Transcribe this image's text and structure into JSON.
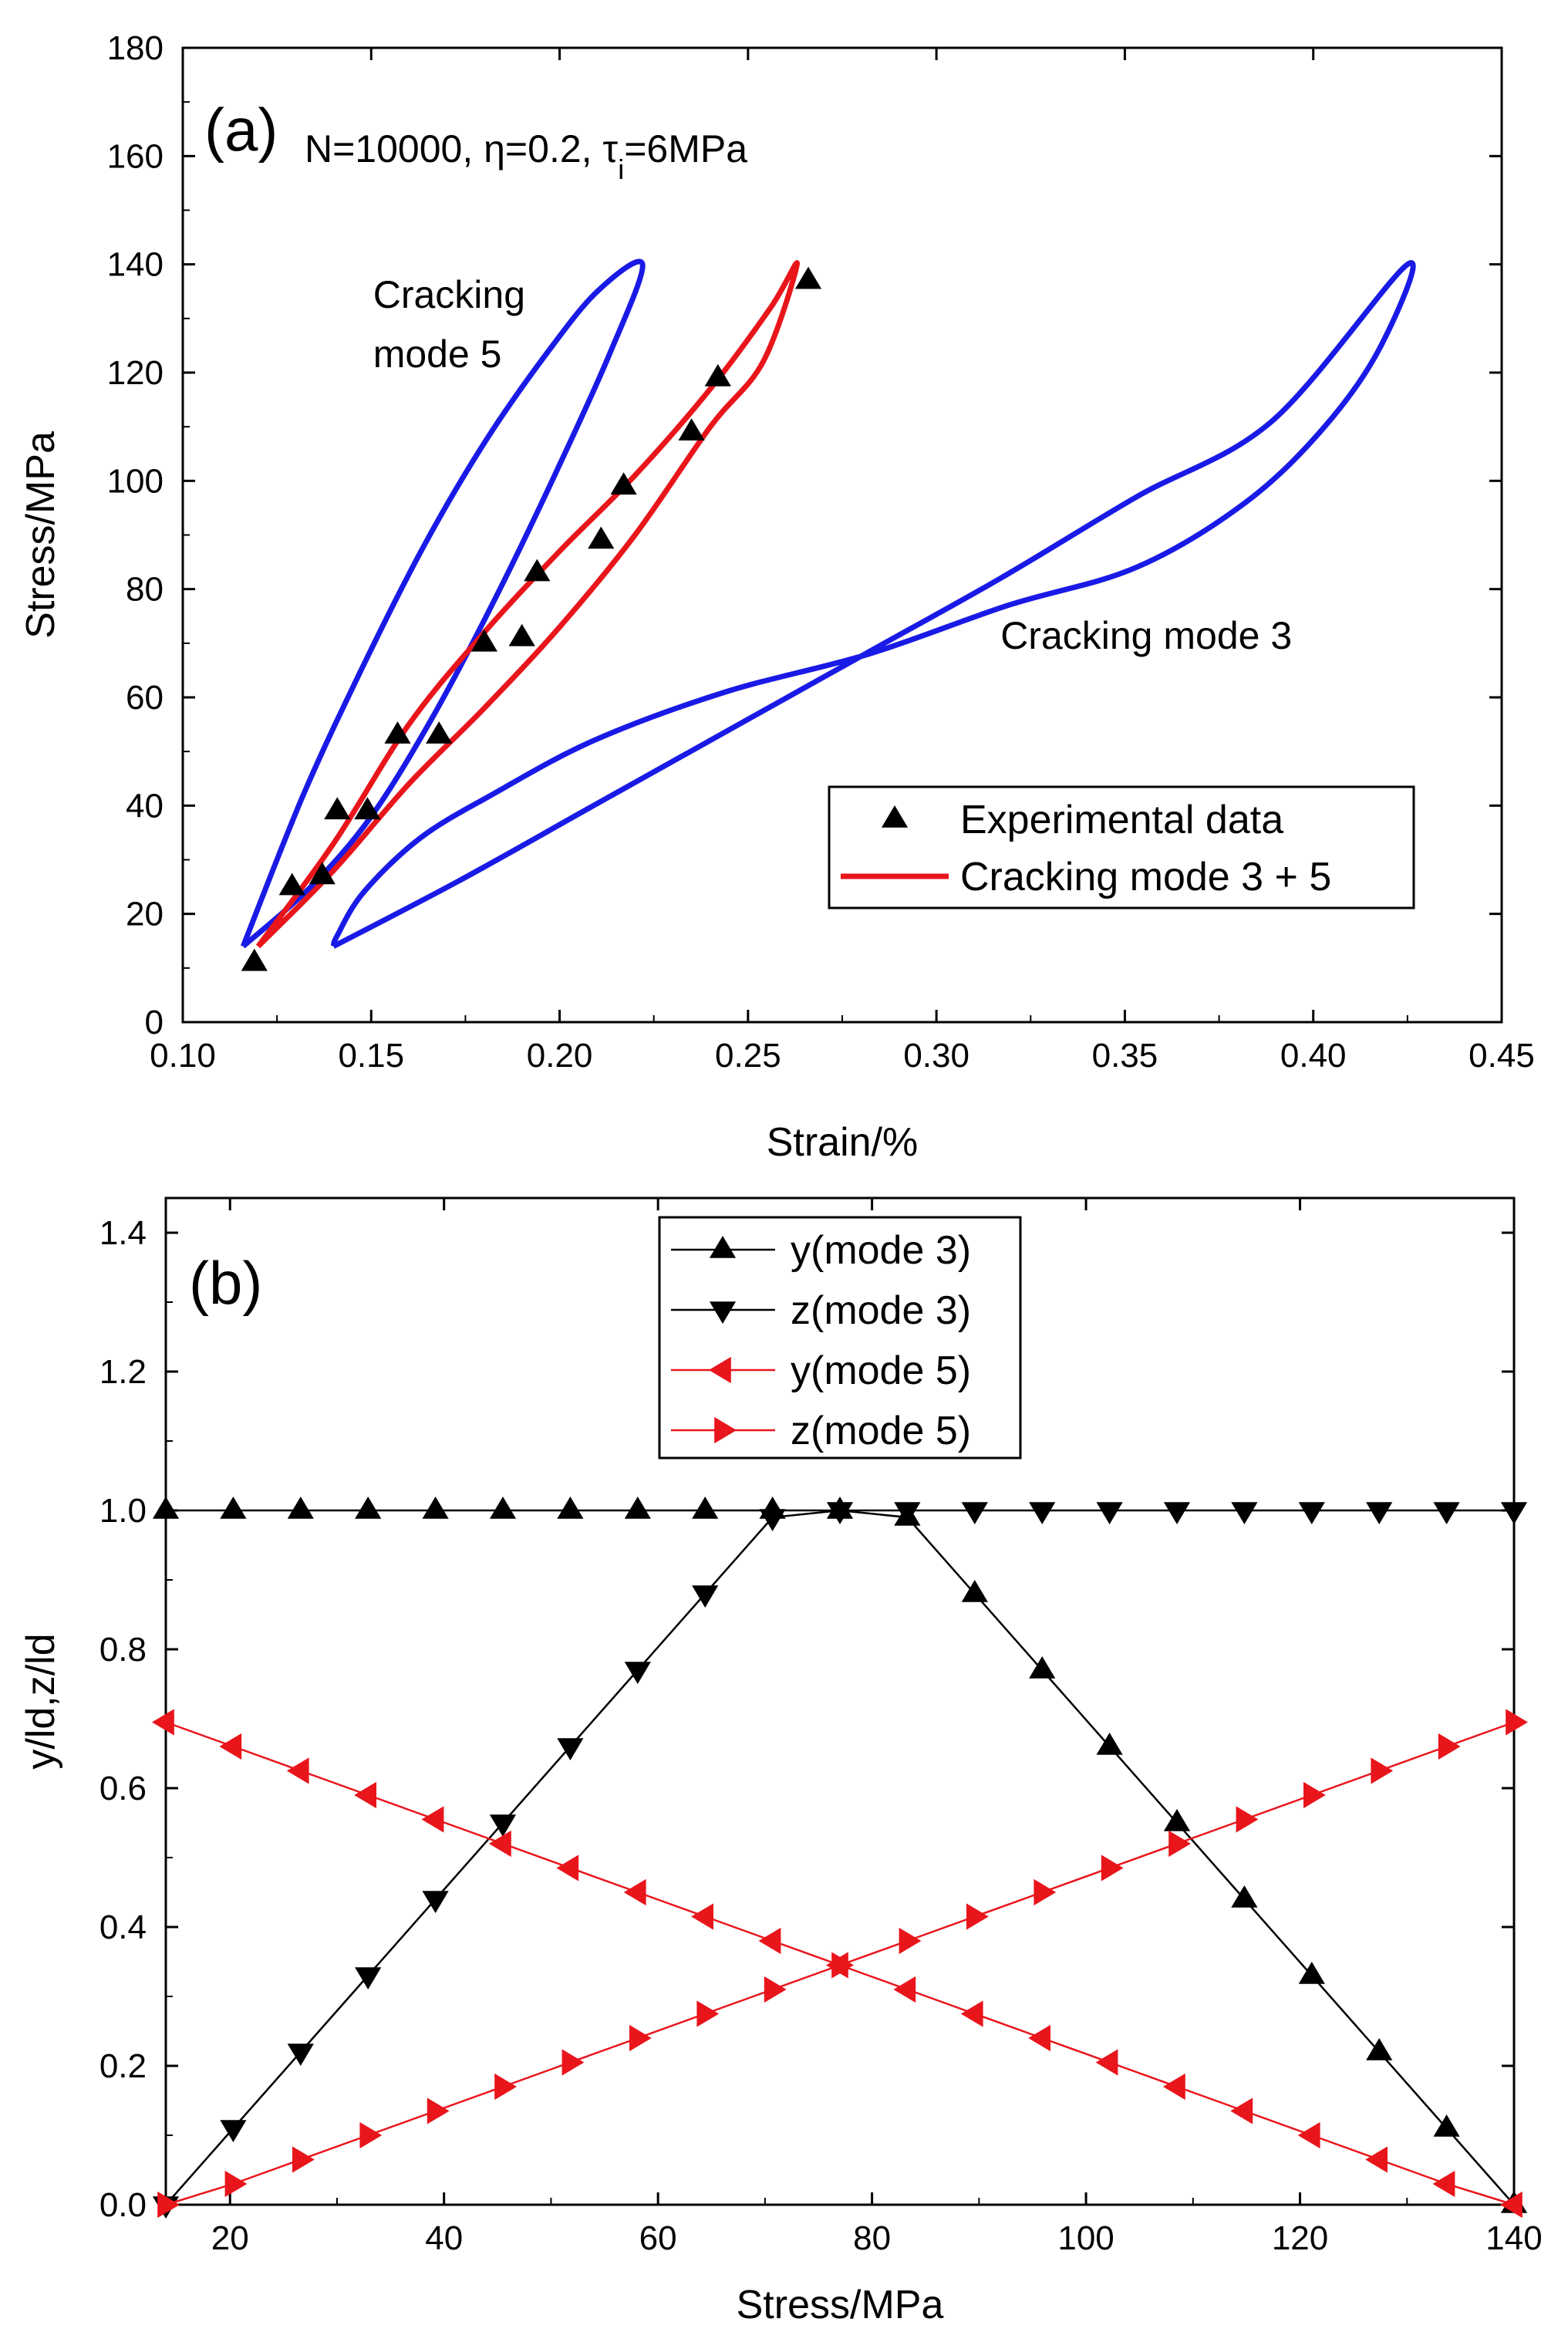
{
  "chart_data": [
    {
      "type": "line",
      "panel": "(a)",
      "xlabel": "Strain/%",
      "ylabel": "Stress/MPa",
      "xlim": [
        0.1,
        0.45
      ],
      "ylim": [
        0,
        180
      ],
      "xticks": [
        "0.10",
        "0.15",
        "0.20",
        "0.25",
        "0.30",
        "0.35",
        "0.40",
        "0.45"
      ],
      "yticks": [
        "0",
        "20",
        "40",
        "60",
        "80",
        "100",
        "120",
        "140",
        "160",
        "180"
      ],
      "params_text": {
        "main": "N=10000, η=0.2, τ",
        "subscript": "i",
        "tail": "=6MPa"
      },
      "annotations": [
        {
          "lines": [
            "Cracking",
            "mode 5"
          ],
          "at": [
            0.1505,
            132
          ]
        },
        {
          "lines": [
            "Cracking mode 3"
          ],
          "at": [
            0.317,
            69
          ]
        }
      ],
      "legend": {
        "position": "lower-right",
        "entries": [
          {
            "label": "Experimental data",
            "marker": "triangle-up",
            "color": "#000000"
          },
          {
            "label": "Cracking mode 3 + 5",
            "line": true,
            "color": "#e8151b"
          }
        ]
      },
      "colors": {
        "mode": "#1a1ae6",
        "combined": "#e8151b",
        "data": "#000000"
      },
      "series": [
        {
          "id": "mode5",
          "color": "#1a1ae6",
          "x": [
            0.116,
            0.132,
            0.148,
            0.164,
            0.18,
            0.196,
            0.21,
            0.222,
            0.213,
            0.198,
            0.182,
            0.166,
            0.15,
            0.134,
            0.116
          ],
          "y": [
            14,
            42,
            66,
            88,
            107,
            123,
            135,
            140,
            123,
            100,
            77,
            56,
            38,
            25,
            14
          ]
        },
        {
          "id": "mode3",
          "color": "#1a1ae6",
          "x": [
            0.14,
            0.173,
            0.209,
            0.245,
            0.281,
            0.317,
            0.353,
            0.389,
            0.425,
            0.418,
            0.403,
            0.382,
            0.353,
            0.319,
            0.282,
            0.244,
            0.209,
            0.182,
            0.163,
            0.148,
            0.141,
            0.14
          ],
          "y": [
            14,
            26,
            40,
            54,
            68,
            82,
            97,
            111,
            140,
            125,
            110,
            96,
            84,
            77,
            68,
            61,
            52,
            42,
            34,
            24,
            16,
            14
          ]
        },
        {
          "id": "combined",
          "color": "#e8151b",
          "x": [
            0.12,
            0.14,
            0.16,
            0.18,
            0.2,
            0.22,
            0.24,
            0.256,
            0.263,
            0.254,
            0.24,
            0.22,
            0.2,
            0.18,
            0.16,
            0.14,
            0.12
          ],
          "y": [
            14,
            33,
            55,
            72,
            87,
            101,
            117,
            132,
            140,
            122,
            110,
            90,
            73,
            58,
            44,
            28,
            14
          ]
        }
      ],
      "experimental": {
        "x": [
          0.119,
          0.129,
          0.137,
          0.141,
          0.149,
          0.157,
          0.168,
          0.18,
          0.19,
          0.194,
          0.211,
          0.217,
          0.235,
          0.242,
          0.266
        ],
        "y": [
          11,
          25,
          27,
          39,
          39,
          53,
          53,
          70,
          71,
          83,
          89,
          99,
          109,
          119,
          137
        ]
      }
    },
    {
      "type": "line",
      "panel": "(b)",
      "xlabel": "Stress/MPa",
      "ylabel": "y/ld,z/ld",
      "xlim": [
        14,
        140
      ],
      "ylim": [
        0,
        1.45
      ],
      "xticks": [
        "20",
        "40",
        "60",
        "80",
        "100",
        "120",
        "140"
      ],
      "yticks": [
        "0.0",
        "0.2",
        "0.4",
        "0.6",
        "0.8",
        "1.0",
        "1.2",
        "1.4"
      ],
      "legend": {
        "position": "top-center",
        "entries": [
          {
            "label": "y(mode 3)",
            "marker": "triangle-up",
            "color": "#000000"
          },
          {
            "label": "z(mode 3)",
            "marker": "triangle-down",
            "color": "#000000"
          },
          {
            "label": "y(mode 5)",
            "marker": "triangle-left",
            "color": "#e8151b"
          },
          {
            "label": "z(mode 5)",
            "marker": "triangle-right",
            "color": "#e8151b"
          }
        ]
      },
      "x": [
        14,
        20.3,
        26.6,
        32.9,
        39.2,
        45.5,
        51.8,
        58.1,
        64.4,
        70.7,
        77,
        83.3,
        89.6,
        95.9,
        102.2,
        108.5,
        114.8,
        121.1,
        127.4,
        133.7,
        140
      ],
      "series": [
        {
          "name": "y(mode 3)",
          "color": "#000000",
          "marker": "triangle-up",
          "values": [
            1,
            1,
            1,
            1,
            1,
            1,
            1,
            1,
            1,
            1,
            1,
            0.99,
            0.88,
            0.77,
            0.66,
            0.55,
            0.44,
            0.33,
            0.22,
            0.11,
            0
          ]
        },
        {
          "name": "z(mode 3)",
          "color": "#000000",
          "marker": "triangle-down",
          "values": [
            0,
            0.11,
            0.22,
            0.33,
            0.44,
            0.55,
            0.66,
            0.77,
            0.88,
            0.99,
            1,
            1,
            1,
            1,
            1,
            1,
            1,
            1,
            1,
            1,
            1
          ]
        },
        {
          "name": "y(mode 5)",
          "color": "#e8151b",
          "marker": "triangle-left",
          "values": [
            0.695,
            0.66,
            0.625,
            0.59,
            0.555,
            0.52,
            0.485,
            0.45,
            0.415,
            0.38,
            0.345,
            0.31,
            0.275,
            0.24,
            0.205,
            0.17,
            0.135,
            0.1,
            0.065,
            0.03,
            0
          ]
        },
        {
          "name": "z(mode 5)",
          "color": "#e8151b",
          "marker": "triangle-right",
          "values": [
            0,
            0.03,
            0.065,
            0.1,
            0.135,
            0.17,
            0.205,
            0.24,
            0.275,
            0.31,
            0.345,
            0.38,
            0.415,
            0.45,
            0.485,
            0.52,
            0.555,
            0.59,
            0.625,
            0.66,
            0.695
          ]
        }
      ]
    }
  ]
}
